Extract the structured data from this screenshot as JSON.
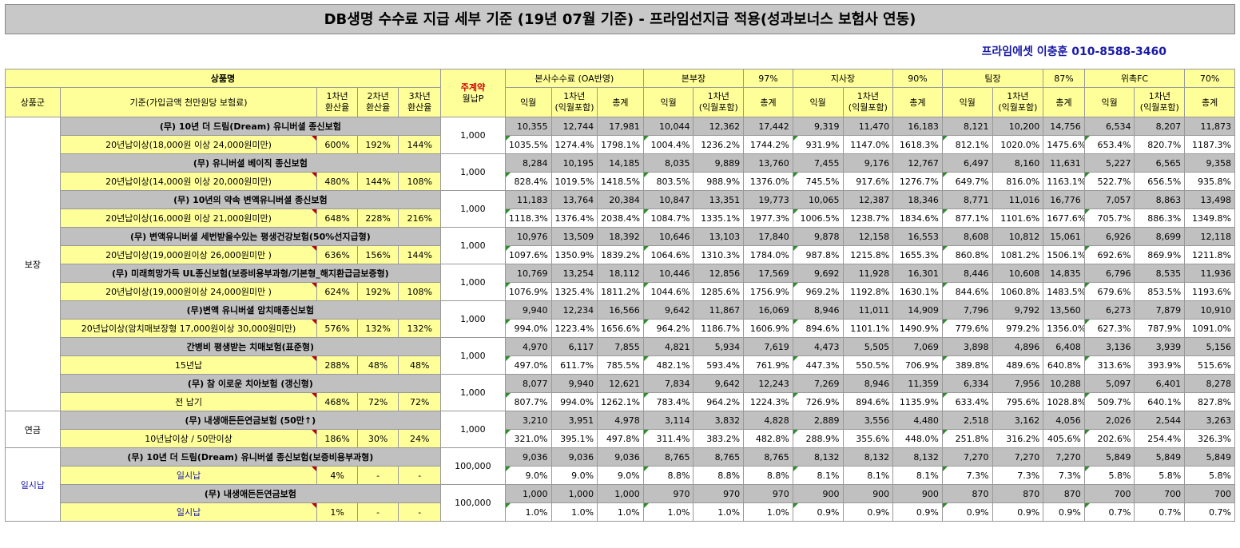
{
  "title": "DB생명 수수료 지급 세부 기준 (19년 07월 기준) - 프라임선지급 적용(성과보너스 보험사 연동)",
  "contact": "프라임에셋 이충훈 010-8588-3460",
  "header": {
    "product_name": "상품명",
    "main_contract_1": "주계약",
    "main_contract_2": "월납P",
    "hq_fee": "본사수수료 (OA반영)",
    "group_b": "본부장",
    "pct_b": "97%",
    "group_c": "지사장",
    "pct_c": "90%",
    "group_d": "팀장",
    "pct_d": "87%",
    "group_e": "위촉FC",
    "pct_e": "70%",
    "product_group": "상품군",
    "criteria": "기준(가입금액 천만원당 보험료)",
    "y1_a": "1차년",
    "y1_b": "환산율",
    "y2_a": "2차년",
    "y2_b": "환산율",
    "y3_a": "3차년",
    "y3_b": "환산율",
    "next_month": "익월",
    "first_year_a": "1차년",
    "first_year_b": "(익월포함)",
    "total": "총계"
  },
  "groups": [
    {
      "name": "보장"
    },
    {
      "name": "연금"
    },
    {
      "name": "일시납"
    }
  ],
  "products": [
    {
      "name": "(무) 10년 더 드림(Dream) 유니버셜 종신보험",
      "criteria": "20년납이상(18,000원 이상 24,000원미만)",
      "r1": "600%",
      "r2": "192%",
      "r3": "144%",
      "premium": "1,000",
      "amounts": [
        "10,355",
        "12,744",
        "17,981",
        "10,044",
        "12,362",
        "17,442",
        "9,319",
        "11,470",
        "16,183",
        "8,121",
        "10,200",
        "14,756",
        "6,534",
        "8,207",
        "11,873"
      ],
      "rates": [
        "1035.5%",
        "1274.4%",
        "1798.1%",
        "1004.4%",
        "1236.2%",
        "1744.2%",
        "931.9%",
        "1147.0%",
        "1618.3%",
        "812.1%",
        "1020.0%",
        "1475.6%",
        "653.4%",
        "820.7%",
        "1187.3%"
      ]
    },
    {
      "name": "(무) 유니버셜 베이직 종신보험",
      "criteria": "20년납이상(14,000원 이상 20,000원미만)",
      "r1": "480%",
      "r2": "144%",
      "r3": "108%",
      "premium": "1,000",
      "amounts": [
        "8,284",
        "10,195",
        "14,185",
        "8,035",
        "9,889",
        "13,760",
        "7,455",
        "9,176",
        "12,767",
        "6,497",
        "8,160",
        "11,631",
        "5,227",
        "6,565",
        "9,358"
      ],
      "rates": [
        "828.4%",
        "1019.5%",
        "1418.5%",
        "803.5%",
        "988.9%",
        "1376.0%",
        "745.5%",
        "917.6%",
        "1276.7%",
        "649.7%",
        "816.0%",
        "1163.1%",
        "522.7%",
        "656.5%",
        "935.8%"
      ]
    },
    {
      "name": "(무) 10년의 약속 변액유니버셜 종신보험",
      "criteria": "20년납이상(16,000원 이상 21,000원미만)",
      "r1": "648%",
      "r2": "228%",
      "r3": "216%",
      "premium": "1,000",
      "amounts": [
        "11,183",
        "13,764",
        "20,384",
        "10,847",
        "13,351",
        "19,773",
        "10,065",
        "12,387",
        "18,346",
        "8,771",
        "11,016",
        "16,776",
        "7,057",
        "8,863",
        "13,498"
      ],
      "rates": [
        "1118.3%",
        "1376.4%",
        "2038.4%",
        "1084.7%",
        "1335.1%",
        "1977.3%",
        "1006.5%",
        "1238.7%",
        "1834.6%",
        "877.1%",
        "1101.6%",
        "1677.6%",
        "705.7%",
        "886.3%",
        "1349.8%"
      ]
    },
    {
      "name": "(무) 변액유니버셜 세번받을수있는 평생건강보험(50%선지급형)",
      "criteria": "20년납이상(19,000원이상 26,000원미만 )",
      "r1": "636%",
      "r2": "156%",
      "r3": "144%",
      "premium": "1,000",
      "amounts": [
        "10,976",
        "13,509",
        "18,392",
        "10,646",
        "13,103",
        "17,840",
        "9,878",
        "12,158",
        "16,553",
        "8,608",
        "10,812",
        "15,061",
        "6,926",
        "8,699",
        "12,118"
      ],
      "rates": [
        "1097.6%",
        "1350.9%",
        "1839.2%",
        "1064.6%",
        "1310.3%",
        "1784.0%",
        "987.8%",
        "1215.8%",
        "1655.3%",
        "860.8%",
        "1081.2%",
        "1506.1%",
        "692.6%",
        "869.9%",
        "1211.8%"
      ]
    },
    {
      "name": "(무) 미래희망가득 UL종신보험(보증비용부과형/기본형_해지환급금보증형)",
      "criteria": "20년납이상(19,000원이상 24,000원미만 )",
      "r1": "624%",
      "r2": "192%",
      "r3": "108%",
      "premium": "1,000",
      "amounts": [
        "10,769",
        "13,254",
        "18,112",
        "10,446",
        "12,856",
        "17,569",
        "9,692",
        "11,928",
        "16,301",
        "8,446",
        "10,608",
        "14,835",
        "6,796",
        "8,535",
        "11,936"
      ],
      "rates": [
        "1076.9%",
        "1325.4%",
        "1811.2%",
        "1044.6%",
        "1285.6%",
        "1756.9%",
        "969.2%",
        "1192.8%",
        "1630.1%",
        "844.6%",
        "1060.8%",
        "1483.5%",
        "679.6%",
        "853.5%",
        "1193.6%"
      ]
    },
    {
      "name": "(무)변액 유니버셜 암치매종신보험",
      "criteria": "20년납이상(암치매보장형 17,000원이상 30,000원미만)",
      "r1": "576%",
      "r2": "132%",
      "r3": "132%",
      "premium": "1,000",
      "amounts": [
        "9,940",
        "12,234",
        "16,566",
        "9,642",
        "11,867",
        "16,069",
        "8,946",
        "11,011",
        "14,909",
        "7,796",
        "9,792",
        "13,560",
        "6,273",
        "7,879",
        "10,910"
      ],
      "rates": [
        "994.0%",
        "1223.4%",
        "1656.6%",
        "964.2%",
        "1186.7%",
        "1606.9%",
        "894.6%",
        "1101.1%",
        "1490.9%",
        "779.6%",
        "979.2%",
        "1356.0%",
        "627.3%",
        "787.9%",
        "1091.0%"
      ]
    },
    {
      "name": "간병비 평생받는 치매보험(표준형)",
      "criteria": "15년납",
      "r1": "288%",
      "r2": "48%",
      "r3": "48%",
      "premium": "1,000",
      "amounts": [
        "4,970",
        "6,117",
        "7,855",
        "4,821",
        "5,934",
        "7,619",
        "4,473",
        "5,505",
        "7,069",
        "3,898",
        "4,896",
        "6,408",
        "3,136",
        "3,939",
        "5,156"
      ],
      "rates": [
        "497.0%",
        "611.7%",
        "785.5%",
        "482.1%",
        "593.4%",
        "761.9%",
        "447.3%",
        "550.5%",
        "706.9%",
        "389.8%",
        "489.6%",
        "640.8%",
        "313.6%",
        "393.9%",
        "515.6%"
      ]
    },
    {
      "name": "(무) 참 이로운 치아보험 (갱신형)",
      "criteria": "전 납기",
      "r1": "468%",
      "r2": "72%",
      "r3": "72%",
      "premium": "1,000",
      "amounts": [
        "8,077",
        "9,940",
        "12,621",
        "7,834",
        "9,642",
        "12,243",
        "7,269",
        "8,946",
        "11,359",
        "6,334",
        "7,956",
        "10,288",
        "5,097",
        "6,401",
        "8,278"
      ],
      "rates": [
        "807.7%",
        "994.0%",
        "1262.1%",
        "783.4%",
        "964.2%",
        "1224.3%",
        "726.9%",
        "894.6%",
        "1135.9%",
        "633.4%",
        "795.6%",
        "1028.8%",
        "509.7%",
        "640.1%",
        "827.8%"
      ]
    },
    {
      "name": "(무) 내생애든든연금보험 (50만↑)",
      "criteria": "10년납이상 / 50만이상",
      "r1": "186%",
      "r2": "30%",
      "r3": "24%",
      "premium": "1,000",
      "amounts": [
        "3,210",
        "3,951",
        "4,978",
        "3,114",
        "3,832",
        "4,828",
        "2,889",
        "3,556",
        "4,480",
        "2,518",
        "3,162",
        "4,056",
        "2,026",
        "2,544",
        "3,263"
      ],
      "rates": [
        "321.0%",
        "395.1%",
        "497.8%",
        "311.4%",
        "383.2%",
        "482.8%",
        "288.9%",
        "355.6%",
        "448.0%",
        "251.8%",
        "316.2%",
        "405.6%",
        "202.6%",
        "254.4%",
        "326.3%"
      ]
    },
    {
      "name": "(무) 10년 더 드림(Dream) 유니버셜 종신보험(보증비용부과형)",
      "criteria": "일시납",
      "r1": "4%",
      "r2": "-",
      "r3": "-",
      "premium": "100,000",
      "amounts": [
        "9,036",
        "9,036",
        "9,036",
        "8,765",
        "8,765",
        "8,765",
        "8,132",
        "8,132",
        "8,132",
        "7,270",
        "7,270",
        "7,270",
        "5,849",
        "5,849",
        "5,849"
      ],
      "rates": [
        "9.0%",
        "9.0%",
        "9.0%",
        "8.8%",
        "8.8%",
        "8.8%",
        "8.1%",
        "8.1%",
        "8.1%",
        "7.3%",
        "7.3%",
        "7.3%",
        "5.8%",
        "5.8%",
        "5.8%"
      ]
    },
    {
      "name": "(무) 내생애든든연금보험",
      "criteria": "일시납",
      "r1": "1%",
      "r2": "-",
      "r3": "-",
      "premium": "100,000",
      "amounts": [
        "1,000",
        "1,000",
        "1,000",
        "970",
        "970",
        "970",
        "900",
        "900",
        "900",
        "870",
        "870",
        "870",
        "700",
        "700",
        "700"
      ],
      "rates": [
        "1.0%",
        "1.0%",
        "1.0%",
        "1.0%",
        "1.0%",
        "1.0%",
        "0.9%",
        "0.9%",
        "0.9%",
        "0.9%",
        "0.9%",
        "0.9%",
        "0.7%",
        "0.7%",
        "0.7%"
      ]
    }
  ]
}
